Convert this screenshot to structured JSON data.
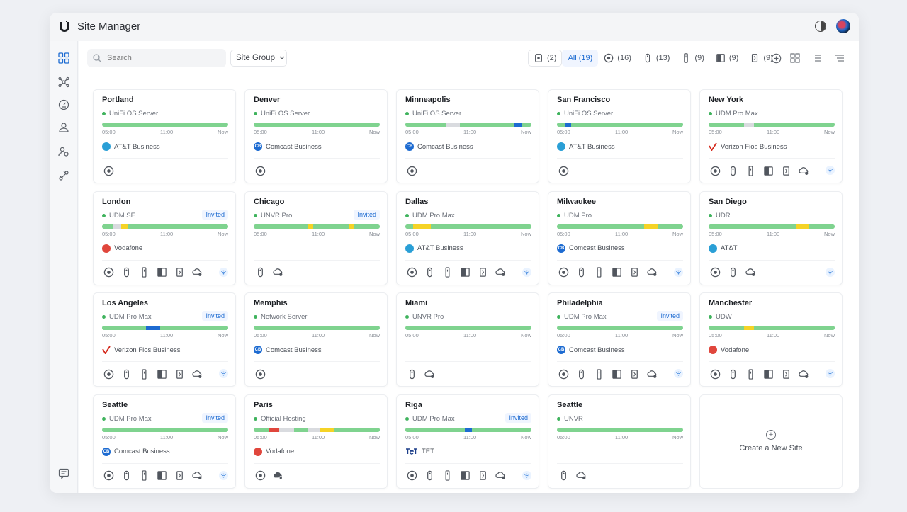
{
  "app": {
    "title": "Site Manager"
  },
  "toolbar": {
    "search_placeholder": "Search",
    "site_group": "Site Group",
    "filters": [
      {
        "icon": "gateway-device-icon",
        "label": "(2)"
      },
      {
        "icon": "",
        "label": "All (19)"
      },
      {
        "icon": "console-device-icon",
        "label": "(16)"
      },
      {
        "icon": "access-point-icon",
        "label": "(13)"
      },
      {
        "icon": "tower-device-icon",
        "label": "(9)"
      },
      {
        "icon": "switch-device-icon",
        "label": "(9)"
      },
      {
        "icon": "sensor-device-icon",
        "label": "(9)"
      }
    ]
  },
  "timeline": {
    "start": "05:00",
    "mid": "11:00",
    "end": "Now"
  },
  "colors": {
    "ok": "#7fd38f",
    "offline": "#d9dbdf",
    "warning": "#f5d326",
    "outage": "#1d6bd1",
    "critical": "#e0463c"
  },
  "sites": [
    {
      "name": "Portland",
      "device": "UniFi OS Server",
      "invited": "",
      "isp": "AT&T Business",
      "isp_logo": "att",
      "segments": [],
      "devices": [
        "console"
      ]
    },
    {
      "name": "Denver",
      "device": "UniFi OS Server",
      "invited": "",
      "isp": "Comcast Business",
      "isp_logo": "comcast",
      "segments": [],
      "devices": [
        "console"
      ]
    },
    {
      "name": "Minneapolis",
      "device": "UniFi OS Server",
      "invited": "",
      "isp": "Comcast Business",
      "isp_logo": "comcast",
      "segments": [
        {
          "s": 0.32,
          "e": 0.43,
          "c": "offline"
        },
        {
          "s": 0.86,
          "e": 0.92,
          "c": "outage"
        }
      ],
      "devices": [
        "console"
      ]
    },
    {
      "name": "San Francisco",
      "device": "UniFi OS Server",
      "invited": "",
      "isp": "AT&T Business",
      "isp_logo": "att",
      "segments": [
        {
          "s": 0.06,
          "e": 0.11,
          "c": "outage"
        }
      ],
      "devices": [
        "console"
      ]
    },
    {
      "name": "New York",
      "device": "UDM Pro Max",
      "invited": "",
      "isp": "Verizon Fios Business",
      "isp_logo": "verizon",
      "segments": [
        {
          "s": 0.28,
          "e": 0.36,
          "c": "offline"
        }
      ],
      "devices": [
        "console",
        "ap",
        "tower",
        "switch",
        "sensor",
        "cloud",
        "wifi"
      ]
    },
    {
      "name": "London",
      "device": "UDM SE",
      "invited": "Invited",
      "isp": "Vodafone",
      "isp_logo": "vodafone",
      "segments": [
        {
          "s": 0.09,
          "e": 0.15,
          "c": "offline"
        },
        {
          "s": 0.15,
          "e": 0.2,
          "c": "warning"
        }
      ],
      "devices": [
        "console",
        "ap",
        "tower",
        "switch",
        "sensor",
        "cloud",
        "wifi"
      ]
    },
    {
      "name": "Chicago",
      "device": "UNVR Pro",
      "invited": "Invited",
      "isp": "",
      "isp_logo": "",
      "segments": [
        {
          "s": 0.43,
          "e": 0.47,
          "c": "warning"
        },
        {
          "s": 0.76,
          "e": 0.8,
          "c": "warning"
        }
      ],
      "devices": [
        "ap",
        "cloud"
      ]
    },
    {
      "name": "Dallas",
      "device": "UDM Pro Max",
      "invited": "",
      "isp": "AT&T Business",
      "isp_logo": "att",
      "segments": [
        {
          "s": 0.06,
          "e": 0.2,
          "c": "warning"
        }
      ],
      "devices": [
        "console",
        "ap",
        "tower",
        "switch",
        "sensor",
        "cloud",
        "wifi"
      ]
    },
    {
      "name": "Milwaukee",
      "device": "UDM Pro",
      "invited": "",
      "isp": "Comcast Business",
      "isp_logo": "comcast",
      "segments": [
        {
          "s": 0.69,
          "e": 0.8,
          "c": "warning"
        }
      ],
      "devices": [
        "console",
        "ap",
        "tower",
        "switch",
        "sensor",
        "cloud",
        "wifi"
      ]
    },
    {
      "name": "San Diego",
      "device": "UDR",
      "invited": "",
      "isp": "AT&T",
      "isp_logo": "att",
      "segments": [
        {
          "s": 0.69,
          "e": 0.8,
          "c": "warning"
        }
      ],
      "devices": [
        "console",
        "ap",
        "cloud",
        "wifi"
      ]
    },
    {
      "name": "Los Angeles",
      "device": "UDM Pro Max",
      "invited": "Invited",
      "isp": "Verizon Fios Business",
      "isp_logo": "verizon",
      "segments": [
        {
          "s": 0.35,
          "e": 0.46,
          "c": "outage"
        }
      ],
      "devices": [
        "console",
        "ap",
        "tower",
        "switch",
        "sensor",
        "cloud",
        "wifi"
      ]
    },
    {
      "name": "Memphis",
      "device": "Network Server",
      "invited": "",
      "isp": "Comcast Business",
      "isp_logo": "comcast",
      "segments": [],
      "devices": [
        "console"
      ]
    },
    {
      "name": "Miami",
      "device": "UNVR Pro",
      "invited": "",
      "isp": "",
      "isp_logo": "",
      "segments": [],
      "devices": [
        "ap",
        "cloud"
      ]
    },
    {
      "name": "Philadelphia",
      "device": "UDM Pro Max",
      "invited": "Invited",
      "isp": "Comcast Business",
      "isp_logo": "comcast",
      "segments": [],
      "devices": [
        "console",
        "ap",
        "tower",
        "switch",
        "sensor",
        "cloud",
        "wifi"
      ]
    },
    {
      "name": "Manchester",
      "device": "UDW",
      "invited": "",
      "isp": "Vodafone",
      "isp_logo": "vodafone",
      "segments": [
        {
          "s": 0.28,
          "e": 0.36,
          "c": "warning"
        }
      ],
      "devices": [
        "console",
        "ap",
        "tower",
        "switch",
        "sensor",
        "cloud",
        "wifi"
      ]
    },
    {
      "name": "Seattle",
      "device": "UDM Pro Max",
      "invited": "Invited",
      "isp": "Comcast Business",
      "isp_logo": "comcast",
      "segments": [],
      "devices": [
        "console",
        "ap",
        "tower",
        "switch",
        "sensor",
        "cloud",
        "wifi"
      ]
    },
    {
      "name": "Paris",
      "device": "Official Hosting",
      "invited": "",
      "isp": "Vodafone",
      "isp_logo": "vodafone",
      "segments": [
        {
          "s": 0.12,
          "e": 0.2,
          "c": "critical"
        },
        {
          "s": 0.2,
          "e": 0.32,
          "c": "offline"
        },
        {
          "s": 0.43,
          "e": 0.53,
          "c": "offline"
        },
        {
          "s": 0.53,
          "e": 0.64,
          "c": "warning"
        }
      ],
      "devices": [
        "console",
        "cloud-alt"
      ]
    },
    {
      "name": "Riga",
      "device": "UDM Pro Max",
      "invited": "Invited",
      "isp": "TET",
      "isp_logo": "tet",
      "segments": [
        {
          "s": 0.47,
          "e": 0.53,
          "c": "outage"
        }
      ],
      "devices": [
        "console",
        "ap",
        "tower",
        "switch",
        "sensor",
        "cloud",
        "wifi"
      ]
    },
    {
      "name": "Seattle",
      "device": "UNVR",
      "invited": "",
      "isp": "",
      "isp_logo": "",
      "segments": [],
      "devices": [
        "ap",
        "cloud"
      ]
    }
  ],
  "create_site": {
    "label": "Create a New Site"
  }
}
